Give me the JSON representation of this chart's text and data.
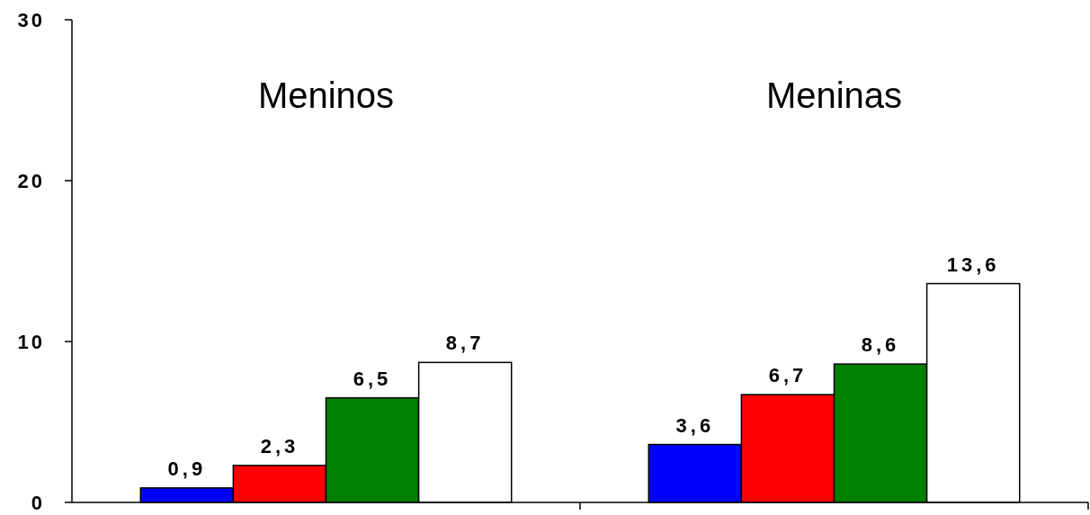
{
  "chart_data": {
    "type": "bar",
    "categories": [
      "Meninos",
      "Meninas"
    ],
    "ylim": [
      0,
      30
    ],
    "yticks": [
      0,
      10,
      20,
      30
    ],
    "grid": false,
    "series": [
      {
        "color": "#0000ff",
        "values": [
          0.9,
          3.6
        ],
        "value_labels": [
          "0,9",
          "3,6"
        ]
      },
      {
        "color": "#ff0000",
        "values": [
          2.3,
          6.7
        ],
        "value_labels": [
          "2,3",
          "6,7"
        ]
      },
      {
        "color": "#008000",
        "values": [
          6.5,
          8.6
        ],
        "value_labels": [
          "6,5",
          "8,6"
        ]
      },
      {
        "color": "#ffffff",
        "values": [
          8.7,
          13.6
        ],
        "value_labels": [
          "8,7",
          "13,6"
        ]
      }
    ]
  }
}
